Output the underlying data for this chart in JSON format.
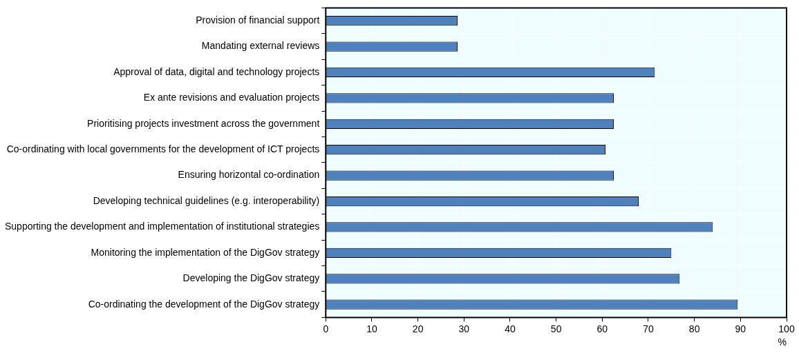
{
  "chart_data": {
    "type": "bar",
    "orientation": "horizontal",
    "xlabel": "%",
    "categories": [
      "Provision of financial support",
      "Mandating external reviews",
      "Approval of data, digital and technology projects",
      "Ex ante revisions and evaluation projects",
      "Prioritising projects investment across the government",
      "Co-ordinating with local governments for the development of ICT projects",
      "Ensuring horizontal co-ordination",
      "Developing technical guidelines (e.g. interoperability)",
      "Supporting the development and implementation of institutional strategies",
      "Monitoring the implementation of the DigGov strategy",
      "Developing the DigGov strategy",
      "Co-ordinating the development of the DigGov strategy"
    ],
    "values": [
      28.6,
      28.6,
      71.4,
      62.5,
      62.5,
      60.7,
      62.5,
      67.9,
      84.0,
      75.0,
      76.8,
      89.4
    ],
    "color": "#4f81bd",
    "xlim": [
      0,
      100
    ],
    "xticks": [
      0,
      10,
      20,
      30,
      40,
      50,
      60,
      70,
      80,
      90,
      100
    ],
    "grid": "x"
  }
}
